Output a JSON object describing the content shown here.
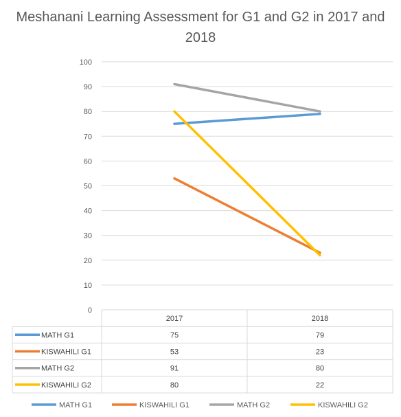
{
  "chart_data": {
    "type": "line",
    "title": "Meshanani Learning Assessment for G1 and G2 in 2017 and 2018",
    "categories": [
      "2017",
      "2018"
    ],
    "series": [
      {
        "name": "MATH G1",
        "values": [
          75,
          79
        ],
        "color": "#5B9BD5"
      },
      {
        "name": "KISWAHILI G1",
        "values": [
          53,
          23
        ],
        "color": "#ED7D31"
      },
      {
        "name": "MATH G2",
        "values": [
          91,
          80
        ],
        "color": "#A5A5A5"
      },
      {
        "name": "KISWAHILI G2",
        "values": [
          80,
          22
        ],
        "color": "#FFC000"
      }
    ],
    "ylim": [
      0,
      100
    ],
    "ytick_step": 10,
    "grid": true,
    "data_table": true,
    "legend": "bottom"
  }
}
